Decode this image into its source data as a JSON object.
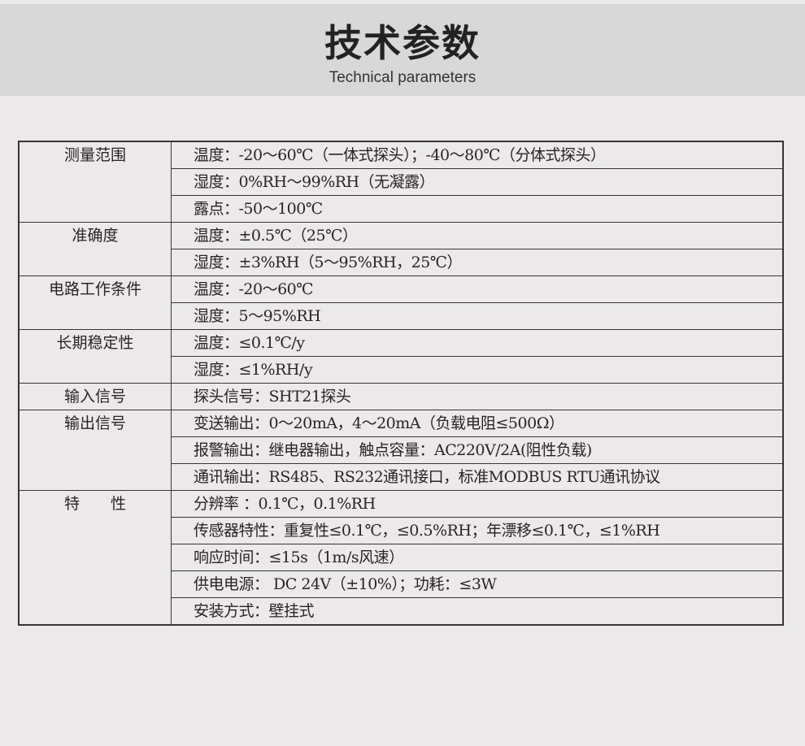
{
  "header": {
    "title": "技术参数",
    "subtitle": "Technical parameters"
  },
  "groups": [
    {
      "label": "测量范围",
      "items": [
        "温度：-20～60℃（一体式探头）；-40～80℃（分体式探头）",
        "湿度：0%RH～99%RH（无凝露）",
        "露点：-50～100℃"
      ]
    },
    {
      "label": "准确度",
      "items": [
        "温度：±0.5℃（25℃）",
        "湿度：±3%RH（5～95%RH，25℃）"
      ]
    },
    {
      "label": "电路工作条件",
      "items": [
        "温度：-20～60℃",
        "湿度：5～95%RH"
      ]
    },
    {
      "label": "长期稳定性",
      "items": [
        "温度：≤0.1℃/y",
        "湿度：≤1%RH/y"
      ]
    },
    {
      "label": "输入信号",
      "items": [
        "探头信号：SHT21探头"
      ]
    },
    {
      "label": "输出信号",
      "items": [
        "变送输出：0～20mA，4～20mA（负载电阻≤500Ω）",
        "报警输出：继电器输出，触点容量：AC220V/2A(阻性负载)",
        "通讯输出：RS485、RS232通讯接口，标准MODBUS RTU通讯协议"
      ]
    },
    {
      "label": "特　　性",
      "items": [
        "分辨率 ：0.1℃，0.1%RH",
        "传感器特性：重复性≤0.1℃，≤0.5%RH；年漂移≤0.1℃，≤1%RH",
        "响应时间：≤15s（1m/s风速）",
        "供电电源： DC 24V（±10%）；功耗：≤3W",
        "安装方式：壁挂式"
      ]
    }
  ]
}
